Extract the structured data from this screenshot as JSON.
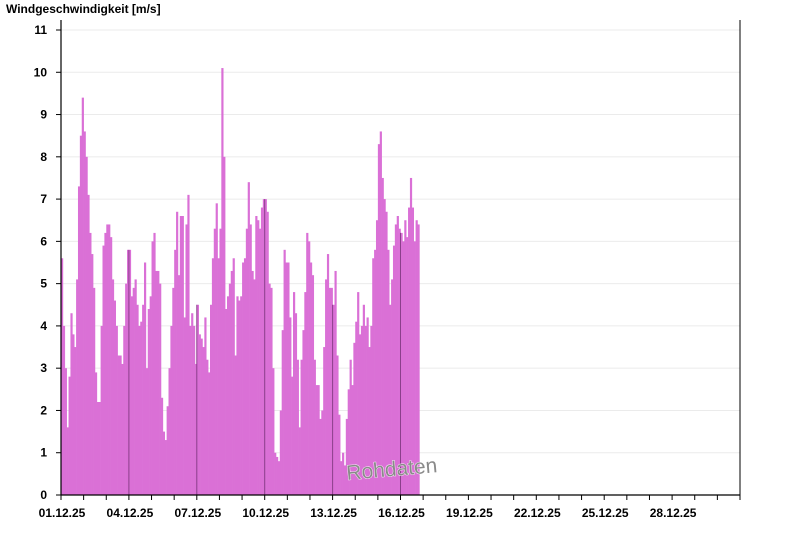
{
  "chart_data": {
    "type": "bar",
    "title": "",
    "ylabel": "Windgeschwindigkeit [m/s]",
    "xlabel": "",
    "ylim": [
      0,
      11
    ],
    "yticks": [
      "0",
      "1",
      "2",
      "3",
      "4",
      "5",
      "6",
      "7",
      "8",
      "9",
      "10",
      "11"
    ],
    "xlim": [
      "01.12.25",
      "31.12.25"
    ],
    "xticks": [
      "01.12.25",
      "04.12.25",
      "07.12.25",
      "10.12.25",
      "13.12.25",
      "16.12.25",
      "19.12.25",
      "22.12.25",
      "25.12.25",
      "28.12.25"
    ],
    "grid": "horizontal",
    "color": "#da70d6",
    "watermark": "Rohdaten",
    "samples_per_day": 12,
    "days": [
      {
        "date": "01.12.25",
        "values": [
          5.6,
          4.0,
          3.0,
          1.6,
          2.8,
          4.3,
          3.8,
          3.5,
          5.1,
          7.3,
          8.5,
          9.4
        ]
      },
      {
        "date": "02.12.25",
        "values": [
          8.6,
          8.0,
          7.1,
          6.2,
          5.7,
          4.9,
          2.9,
          2.2,
          2.2,
          4.0,
          5.9,
          6.2
        ]
      },
      {
        "date": "03.12.25",
        "values": [
          6.4,
          6.4,
          6.1,
          5.1,
          4.6,
          4.0,
          3.3,
          3.3,
          3.1,
          4.0,
          5.0,
          5.8
        ]
      },
      {
        "date": "04.12.25",
        "values": [
          5.8,
          4.7,
          4.9,
          5.1,
          4.5,
          4.0,
          4.1,
          4.5,
          5.5,
          3.0,
          4.4,
          4.7
        ]
      },
      {
        "date": "05.12.25",
        "values": [
          6.0,
          6.2,
          5.3,
          5.3,
          5.0,
          2.3,
          1.5,
          1.3,
          2.1,
          3.0,
          4.0,
          4.9
        ]
      },
      {
        "date": "06.12.25",
        "values": [
          5.8,
          6.7,
          5.2,
          6.6,
          6.6,
          4.2,
          6.4,
          7.1,
          4.0,
          4.3,
          4.0,
          3.1
        ]
      },
      {
        "date": "07.12.25",
        "values": [
          4.5,
          3.8,
          3.7,
          3.5,
          4.2,
          3.2,
          2.9,
          4.5,
          5.6,
          6.3,
          6.9,
          5.6
        ]
      },
      {
        "date": "08.12.25",
        "values": [
          6.3,
          10.1,
          8.0,
          4.4,
          4.7,
          5.0,
          5.3,
          5.6,
          3.3,
          4.7,
          4.6,
          4.7
        ]
      },
      {
        "date": "09.12.25",
        "values": [
          5.5,
          5.6,
          6.3,
          7.4,
          6.4,
          5.3,
          5.1,
          6.6,
          6.5,
          6.3,
          6.8,
          7.0
        ]
      },
      {
        "date": "10.12.25",
        "values": [
          7.0,
          6.7,
          5.0,
          4.9,
          3.0,
          1.0,
          0.9,
          0.8,
          2.0,
          3.9,
          5.8,
          5.5
        ]
      },
      {
        "date": "11.12.25",
        "values": [
          5.5,
          4.2,
          2.8,
          4.8,
          4.3,
          3.2,
          1.6,
          3.2,
          3.9,
          4.8,
          6.2,
          6.0
        ]
      },
      {
        "date": "12.12.25",
        "values": [
          5.5,
          5.2,
          3.2,
          2.6,
          2.6,
          1.8,
          2.0,
          3.5,
          5.1,
          5.7,
          4.9,
          4.9
        ]
      },
      {
        "date": "13.12.25",
        "values": [
          4.5,
          5.3,
          3.3,
          1.9,
          0.8,
          1.0,
          0.7,
          1.8,
          2.5,
          3.2,
          2.6,
          3.6
        ]
      },
      {
        "date": "14.12.25",
        "values": [
          4.1,
          4.8,
          3.8,
          4.0,
          4.5,
          4.0,
          4.2,
          3.5,
          4.0,
          5.6,
          5.8,
          6.5
        ]
      },
      {
        "date": "15.12.25",
        "values": [
          8.3,
          8.6,
          7.5,
          7.0,
          6.7,
          5.8,
          4.5,
          5.1,
          5.9,
          6.4,
          6.6,
          6.3
        ]
      },
      {
        "date": "16.12.25",
        "values": [
          6.2,
          6.0,
          6.5,
          6.1,
          6.8,
          7.5,
          6.8,
          6.0,
          6.5,
          6.4
        ]
      }
    ]
  }
}
